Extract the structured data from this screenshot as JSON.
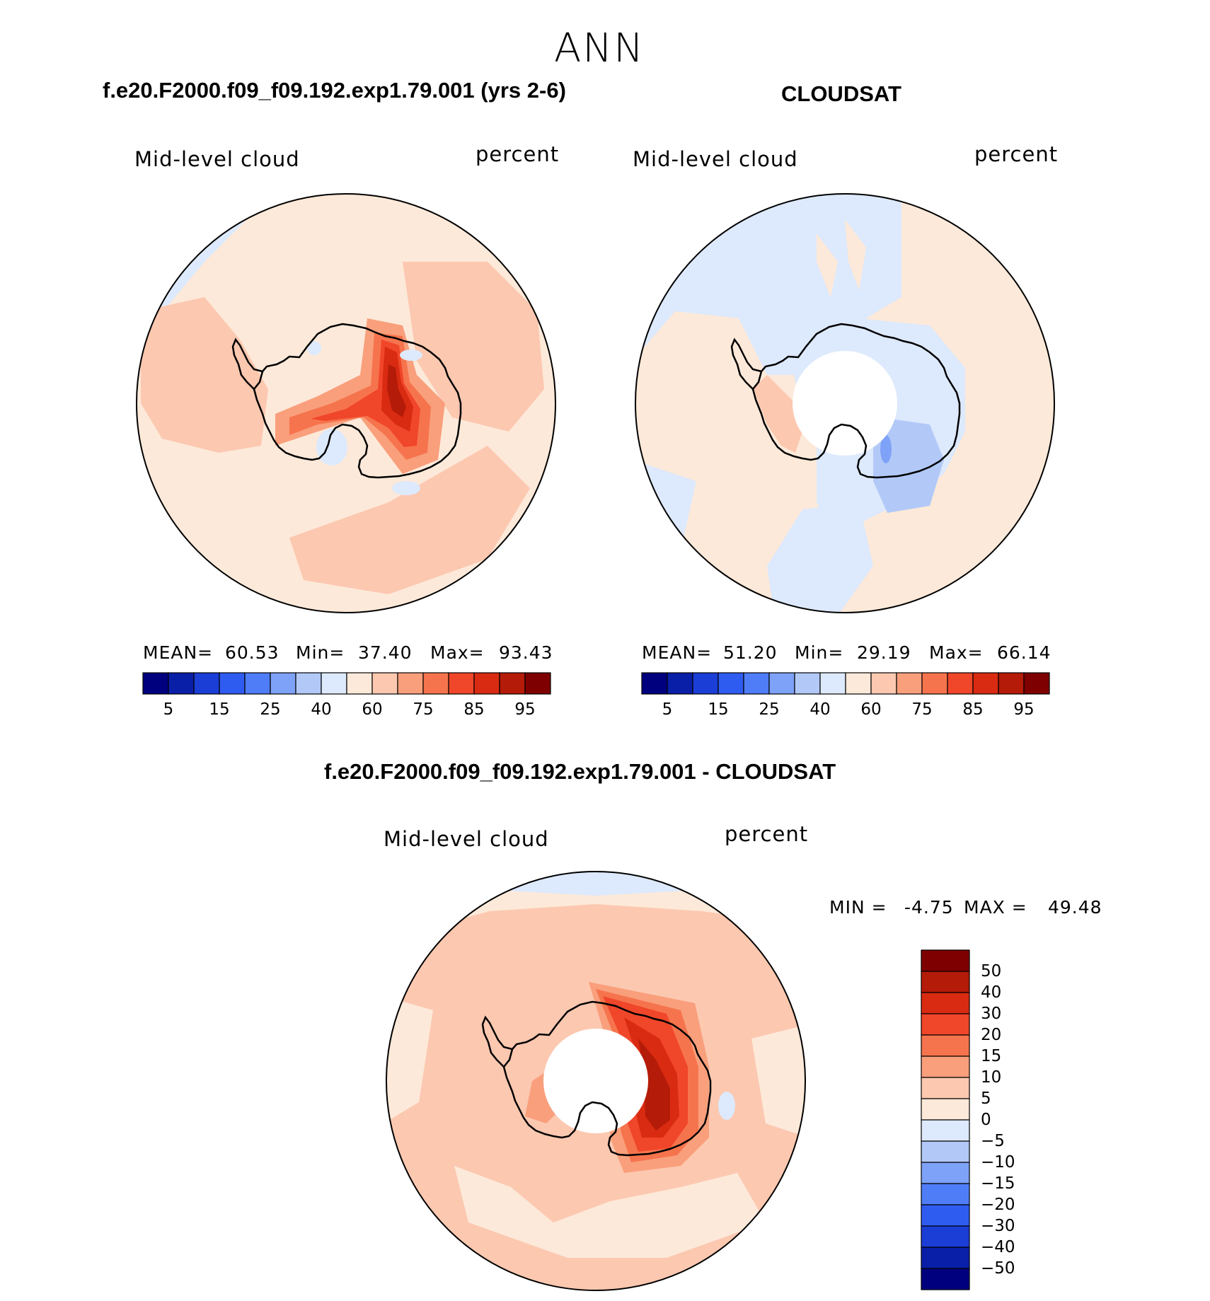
{
  "page_title": "ANN",
  "panels": [
    {
      "title": "f.e20.F2000.f09_f09.192.exp1.79.001 (yrs 2-6)",
      "variable": "Mid-level cloud",
      "units": "percent",
      "stats": {
        "mean_label": "MEAN=",
        "mean": "60.53",
        "min_label": "Min=",
        "min": "37.40",
        "max_label": "Max=",
        "max": "93.43"
      }
    },
    {
      "title": "CLOUDSAT",
      "variable": "Mid-level cloud",
      "units": "percent",
      "stats": {
        "mean_label": "MEAN=",
        "mean": "51.20",
        "min_label": "Min=",
        "min": "29.19",
        "max_label": "Max=",
        "max": "66.14"
      }
    },
    {
      "title": "f.e20.F2000.f09_f09.192.exp1.79.001 - CLOUDSAT",
      "variable": "Mid-level cloud",
      "units": "percent",
      "stats": {
        "min_label": "MIN =",
        "min": "-4.75",
        "max_label": "MAX =",
        "max": "49.48"
      }
    }
  ],
  "colorbar_abs": {
    "colors": [
      "#00007f",
      "#0a1fa8",
      "#1b3ed6",
      "#2f5cf0",
      "#4f7df7",
      "#7ea2f7",
      "#b2c9f8",
      "#dde9fc",
      "#fde9d9",
      "#fcc8b0",
      "#f99f7c",
      "#f6744d",
      "#f0462a",
      "#d92b12",
      "#b41b08",
      "#7f0000"
    ],
    "tick_labels": [
      "5",
      "15",
      "25",
      "40",
      "60",
      "75",
      "85",
      "95"
    ]
  },
  "colorbar_diff": {
    "colors": [
      "#00007f",
      "#0a1fa8",
      "#1b3ed6",
      "#2f5cf0",
      "#4f7df7",
      "#7ea2f7",
      "#b2c9f8",
      "#dde9fc",
      "#fde9d9",
      "#fcc8b0",
      "#f99f7c",
      "#f6744d",
      "#f0462a",
      "#d92b12",
      "#b41b08",
      "#7f0000"
    ],
    "tick_labels": [
      "50",
      "40",
      "30",
      "20",
      "15",
      "10",
      "5",
      "0",
      "−5",
      "−10",
      "−15",
      "−20",
      "−30",
      "−40",
      "−50"
    ]
  },
  "colors": {
    "light_pink": "#fde9d9",
    "salmon": "#fcc8b0",
    "orange": "#f99f7c",
    "red_orange": "#f6744d",
    "red": "#f0462a",
    "dark_red": "#d92b12",
    "crimson": "#b41b08",
    "pale_blue": "#dde9fc",
    "light_blue": "#b2c9f8"
  }
}
